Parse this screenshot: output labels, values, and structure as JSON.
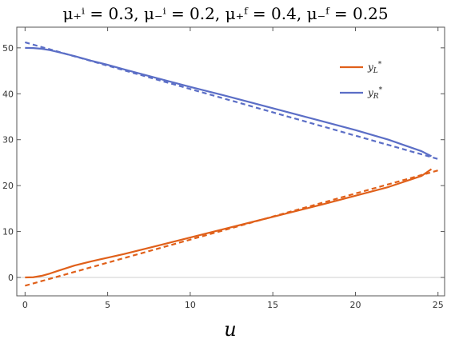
{
  "chart_data": {
    "type": "line",
    "title": "μ₊ⁱ = 0.3, μ₋ⁱ = 0.2, μ₊ᶠ = 0.4, μ₋ᶠ = 0.25",
    "xlabel": "u",
    "ylabel": "",
    "xlim": [
      -0.5,
      25.4
    ],
    "ylim": [
      -4,
      54.5
    ],
    "xticks": [
      0,
      5,
      10,
      15,
      20,
      25
    ],
    "yticks": [
      0,
      10,
      20,
      30,
      40,
      50
    ],
    "grid": false,
    "legend_position": "top-right",
    "series": [
      {
        "name": "y_L*",
        "color": "#e0601a",
        "style": "solid",
        "x": [
          0,
          0.5,
          1,
          1.5,
          2,
          3,
          4,
          5,
          6,
          8,
          10,
          12,
          14,
          16,
          18,
          20,
          22,
          24,
          24.6
        ],
        "y": [
          0,
          0.05,
          0.35,
          0.85,
          1.45,
          2.6,
          3.5,
          4.3,
          5.1,
          6.9,
          8.7,
          10.5,
          12.3,
          14.1,
          15.9,
          17.8,
          19.7,
          22.1,
          23.6
        ]
      },
      {
        "name": "y_L* (asymptotic)",
        "color": "#e0601a",
        "style": "dashed",
        "x": [
          0,
          25
        ],
        "y": [
          -1.8,
          23.3
        ]
      },
      {
        "name": "y_R*",
        "color": "#5b6ec6",
        "style": "solid",
        "x": [
          0,
          0.5,
          1,
          1.5,
          2,
          3,
          4,
          5,
          6,
          8,
          10,
          12,
          14,
          16,
          18,
          20,
          22,
          24,
          24.6
        ],
        "y": [
          50,
          49.95,
          49.8,
          49.5,
          49.1,
          48.2,
          47.2,
          46.3,
          45.3,
          43.4,
          41.5,
          39.7,
          37.8,
          35.9,
          34.0,
          32.1,
          30.0,
          27.5,
          26.4
        ]
      },
      {
        "name": "y_R* (asymptotic)",
        "color": "#5b6ec6",
        "style": "dashed",
        "x": [
          0,
          25
        ],
        "y": [
          51.2,
          25.8
        ]
      }
    ],
    "legend": [
      {
        "label": "y",
        "sub": "L",
        "sup": "*",
        "color": "#e0601a"
      },
      {
        "label": "y",
        "sub": "R",
        "sup": "*",
        "color": "#5b6ec6"
      }
    ]
  }
}
